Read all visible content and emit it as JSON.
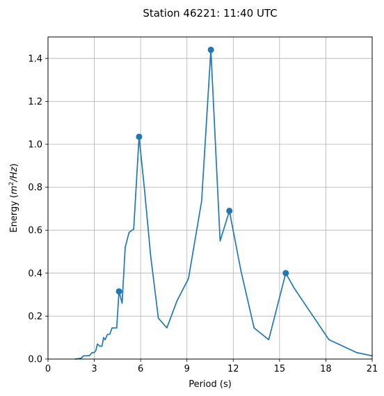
{
  "chart_data": {
    "type": "line",
    "title": "Station 46221: 11:40 UTC",
    "xlabel": "Period (s)",
    "ylabel_main": "Energy (",
    "ylabel_m": "m",
    "ylabel_exp": "2",
    "ylabel_hz": "/Hz",
    "ylabel_close": ")",
    "xlim": [
      0,
      21
    ],
    "ylim": [
      0,
      1.5
    ],
    "x_ticks": [
      0,
      3,
      6,
      9,
      12,
      15,
      18,
      21
    ],
    "y_ticks": [
      0.0,
      0.2,
      0.4,
      0.6,
      0.8,
      1.0,
      1.2,
      1.4
    ],
    "x_tick_labels": [
      "0",
      "3",
      "6",
      "9",
      "12",
      "15",
      "18",
      "21"
    ],
    "y_tick_labels": [
      "0.0",
      "0.2",
      "0.4",
      "0.6",
      "0.8",
      "1.0",
      "1.2",
      "1.4"
    ],
    "grid": true,
    "line_color": "#1f77b4",
    "series": [
      {
        "x": [
          1.75,
          2.0,
          2.15,
          2.3,
          2.5,
          2.7,
          2.85,
          3.0,
          3.1,
          3.2,
          3.35,
          3.5,
          3.6,
          3.7,
          3.85,
          4.0,
          4.15,
          4.3,
          4.45,
          4.6,
          4.8,
          5.0,
          5.25,
          5.55,
          5.9,
          6.25,
          6.65,
          7.15,
          7.7,
          8.35,
          9.1,
          9.95,
          10.55,
          11.15,
          11.75,
          12.5,
          13.35,
          14.3,
          15.4,
          15.95,
          16.65,
          18.2,
          20.0,
          21.0
        ],
        "y": [
          0.0,
          0.002,
          0.004,
          0.015,
          0.015,
          0.017,
          0.03,
          0.03,
          0.04,
          0.07,
          0.06,
          0.06,
          0.1,
          0.09,
          0.115,
          0.115,
          0.145,
          0.145,
          0.145,
          0.315,
          0.26,
          0.52,
          0.59,
          0.605,
          1.035,
          0.79,
          0.48,
          0.19,
          0.145,
          0.27,
          0.375,
          0.735,
          1.44,
          0.55,
          0.69,
          0.41,
          0.145,
          0.09,
          0.4,
          0.33,
          0.255,
          0.09,
          0.03,
          0.015
        ]
      }
    ],
    "peaks": {
      "x": [
        4.6,
        5.9,
        10.55,
        11.75,
        15.4
      ],
      "y": [
        0.315,
        1.035,
        1.44,
        0.69,
        0.4
      ]
    }
  }
}
